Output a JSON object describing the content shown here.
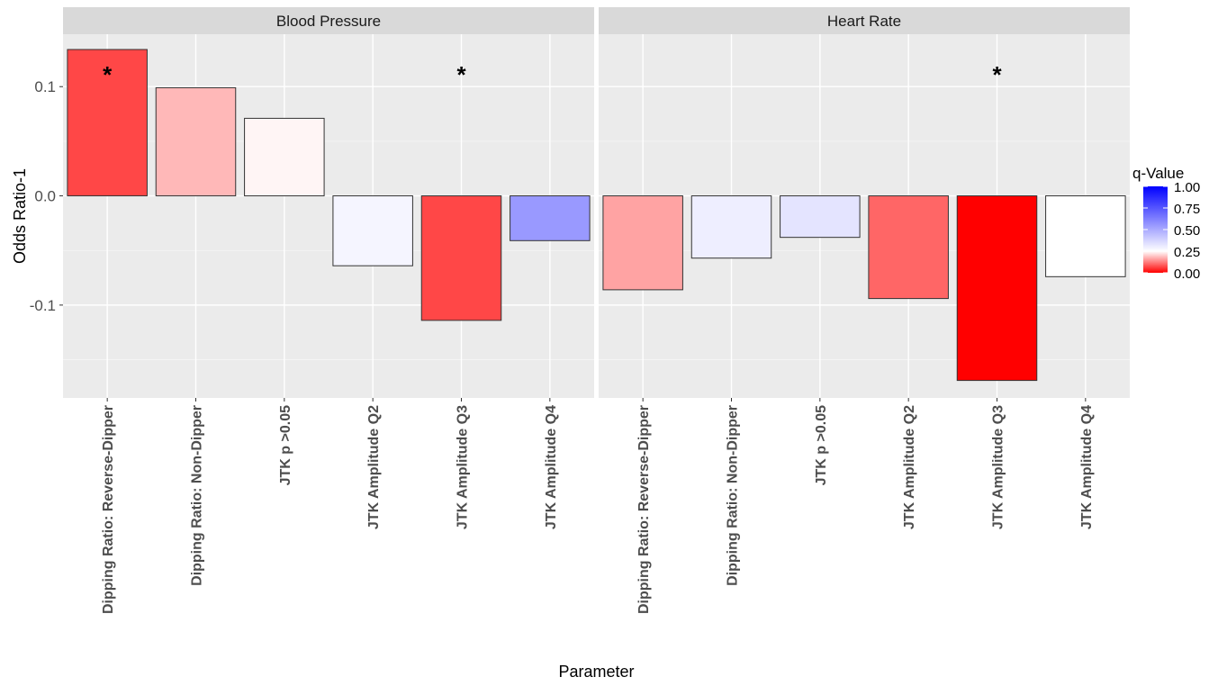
{
  "chart_data": {
    "type": "bar",
    "ylabel": "Odds Ratio-1",
    "xlabel": "Parameter",
    "ylim": [
      -0.185,
      0.148
    ],
    "yticks": [
      0.1,
      0.0,
      -0.1
    ],
    "ytick_labels": [
      "0.1",
      "0.0",
      "-0.1"
    ],
    "categories": [
      "Dipping Ratio: Reverse-Dipper",
      "Dipping Ratio: Non-Dipper",
      "JTK p >0.05",
      "JTK Amplitude Q2",
      "JTK Amplitude Q3",
      "JTK Amplitude Q4"
    ],
    "panels": [
      {
        "title": "Blood Pressure",
        "values": [
          0.134,
          0.099,
          0.071,
          -0.064,
          -0.114,
          -0.041
        ],
        "q_values": [
          0.07,
          0.18,
          0.24,
          0.28,
          0.07,
          0.55
        ],
        "significant": [
          true,
          false,
          false,
          false,
          true,
          false
        ]
      },
      {
        "title": "Heart Rate",
        "values": [
          -0.086,
          -0.057,
          -0.038,
          -0.094,
          -0.169,
          -0.074
        ],
        "q_values": [
          0.16,
          0.3,
          0.33,
          0.1,
          0.0,
          0.25
        ],
        "significant": [
          false,
          false,
          false,
          false,
          true,
          false
        ]
      }
    ],
    "significance_marker": "*",
    "legend": {
      "title": "q-Value",
      "position": "right",
      "labels": [
        "1.00",
        "0.75",
        "0.50",
        "0.25",
        "0.00"
      ],
      "breaks": [
        1.0,
        0.75,
        0.5,
        0.25,
        0.0
      ],
      "low_color": "#ff0000",
      "mid_color": "#ffffff",
      "high_color": "#0000ff",
      "midpoint": 0.25
    },
    "grid": true,
    "panel_background": "#ebebeb",
    "strip_background": "#d9d9d9"
  }
}
